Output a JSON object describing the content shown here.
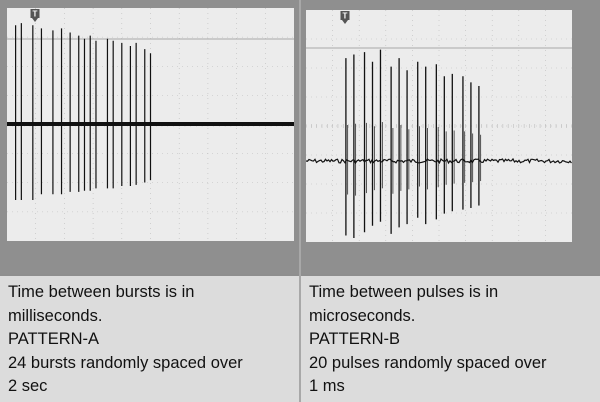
{
  "chart_data": [
    {
      "type": "line",
      "panel": "left",
      "trigger_marker": "T",
      "grid": true,
      "units": "bursts",
      "count": 24,
      "span": "2 sec",
      "colors": {
        "screen": "#ececec",
        "trace": "#111111",
        "grid": "#bcbcbc",
        "ref": "#a9a9a9"
      },
      "events": [
        {
          "t": 0.03,
          "amp": 0.95,
          "depth": 0.65
        },
        {
          "t": 0.05,
          "amp": 0.97,
          "depth": 0.65
        },
        {
          "t": 0.09,
          "amp": 0.95,
          "depth": 0.65
        },
        {
          "t": 0.12,
          "amp": 0.92,
          "depth": 0.6
        },
        {
          "t": 0.16,
          "amp": 0.9,
          "depth": 0.6
        },
        {
          "t": 0.19,
          "amp": 0.92,
          "depth": 0.6
        },
        {
          "t": 0.22,
          "amp": 0.88,
          "depth": 0.58
        },
        {
          "t": 0.25,
          "amp": 0.85,
          "depth": 0.58
        },
        {
          "t": 0.27,
          "amp": 0.82,
          "depth": 0.57
        },
        {
          "t": 0.29,
          "amp": 0.85,
          "depth": 0.57
        },
        {
          "t": 0.31,
          "amp": 0.8,
          "depth": 0.55
        },
        {
          "t": 0.35,
          "amp": 0.82,
          "depth": 0.55
        },
        {
          "t": 0.37,
          "amp": 0.8,
          "depth": 0.55
        },
        {
          "t": 0.4,
          "amp": 0.78,
          "depth": 0.53
        },
        {
          "t": 0.43,
          "amp": 0.75,
          "depth": 0.53
        },
        {
          "t": 0.45,
          "amp": 0.78,
          "depth": 0.52
        },
        {
          "t": 0.48,
          "amp": 0.72,
          "depth": 0.5
        },
        {
          "t": 0.5,
          "amp": 0.68,
          "depth": 0.48
        }
      ]
    },
    {
      "type": "line",
      "panel": "right",
      "trigger_marker": "T",
      "grid": true,
      "units": "pulses",
      "count": 20,
      "span": "1 ms",
      "colors": {
        "screen": "#ececec",
        "trace": "#111111",
        "grid": "#bcbcbc",
        "ref": "#a9a9a9"
      },
      "events": [
        {
          "t": 0.15,
          "amp": 0.85,
          "depth": 0.92
        },
        {
          "t": 0.18,
          "amp": 0.88,
          "depth": 0.95
        },
        {
          "t": 0.22,
          "amp": 0.9,
          "depth": 0.88
        },
        {
          "t": 0.25,
          "amp": 0.82,
          "depth": 0.8
        },
        {
          "t": 0.28,
          "amp": 0.92,
          "depth": 0.75
        },
        {
          "t": 0.32,
          "amp": 0.78,
          "depth": 0.9
        },
        {
          "t": 0.35,
          "amp": 0.85,
          "depth": 0.82
        },
        {
          "t": 0.38,
          "amp": 0.75,
          "depth": 0.78
        },
        {
          "t": 0.42,
          "amp": 0.82,
          "depth": 0.7
        },
        {
          "t": 0.45,
          "amp": 0.78,
          "depth": 0.78
        },
        {
          "t": 0.49,
          "amp": 0.8,
          "depth": 0.72
        },
        {
          "t": 0.52,
          "amp": 0.7,
          "depth": 0.65
        },
        {
          "t": 0.55,
          "amp": 0.72,
          "depth": 0.62
        },
        {
          "t": 0.59,
          "amp": 0.7,
          "depth": 0.6
        },
        {
          "t": 0.62,
          "amp": 0.65,
          "depth": 0.58
        },
        {
          "t": 0.65,
          "amp": 0.62,
          "depth": 0.55
        }
      ]
    }
  ],
  "captions": {
    "left": [
      "Time between bursts is in",
      "milliseconds.",
      "PATTERN-A",
      "24 bursts randomly spaced over",
      "2 sec"
    ],
    "right": [
      "Time between pulses is in",
      "microseconds.",
      "PATTERN-B",
      "20 pulses randomly spaced over",
      "1 ms"
    ]
  }
}
